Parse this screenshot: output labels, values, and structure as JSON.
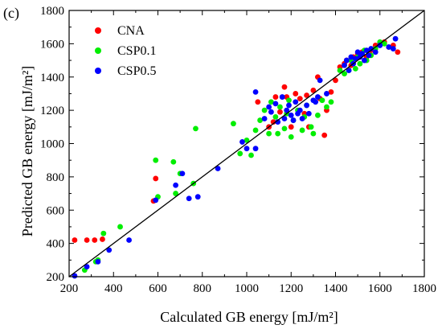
{
  "panel_label": "(c)",
  "chart_data": {
    "type": "scatter",
    "title": "",
    "xlabel": "Calculated GB energy [mJ/m²]",
    "ylabel": "Predicted GB energy [mJ/m²]",
    "xlim": [
      200,
      1800
    ],
    "ylim": [
      200,
      1800
    ],
    "xticks": [
      200,
      400,
      600,
      800,
      1000,
      1200,
      1400,
      1600,
      1800
    ],
    "yticks": [
      200,
      400,
      600,
      800,
      1000,
      1200,
      1400,
      1600,
      1800
    ],
    "legend_placement": "top-left",
    "reference_line": [
      [
        200,
        200
      ],
      [
        1800,
        1800
      ]
    ],
    "series": [
      {
        "name": "CNA",
        "color": "#ff0000",
        "points": [
          [
            225,
            420
          ],
          [
            280,
            420
          ],
          [
            315,
            420
          ],
          [
            350,
            425
          ],
          [
            590,
            790
          ],
          [
            580,
            655
          ],
          [
            1050,
            1250
          ],
          [
            1100,
            1100
          ],
          [
            1120,
            1130
          ],
          [
            1130,
            1280
          ],
          [
            1150,
            1190
          ],
          [
            1170,
            1340
          ],
          [
            1180,
            1280
          ],
          [
            1200,
            1100
          ],
          [
            1220,
            1300
          ],
          [
            1240,
            1270
          ],
          [
            1260,
            1180
          ],
          [
            1270,
            1290
          ],
          [
            1280,
            1100
          ],
          [
            1300,
            1320
          ],
          [
            1320,
            1400
          ],
          [
            1330,
            1270
          ],
          [
            1350,
            1050
          ],
          [
            1360,
            1200
          ],
          [
            1380,
            1310
          ],
          [
            1400,
            1380
          ],
          [
            1420,
            1460
          ],
          [
            1440,
            1480
          ],
          [
            1450,
            1500
          ],
          [
            1470,
            1470
          ],
          [
            1480,
            1520
          ],
          [
            1500,
            1540
          ],
          [
            1520,
            1550
          ],
          [
            1540,
            1520
          ],
          [
            1560,
            1560
          ],
          [
            1580,
            1590
          ],
          [
            1600,
            1600
          ],
          [
            1620,
            1610
          ],
          [
            1640,
            1580
          ],
          [
            1660,
            1590
          ],
          [
            1680,
            1550
          ]
        ]
      },
      {
        "name": "CSP0.1",
        "color": "#00ee00",
        "points": [
          [
            270,
            240
          ],
          [
            320,
            290
          ],
          [
            330,
            300
          ],
          [
            355,
            460
          ],
          [
            430,
            500
          ],
          [
            590,
            900
          ],
          [
            600,
            680
          ],
          [
            670,
            890
          ],
          [
            680,
            700
          ],
          [
            700,
            820
          ],
          [
            760,
            760
          ],
          [
            770,
            1090
          ],
          [
            940,
            1120
          ],
          [
            970,
            940
          ],
          [
            1000,
            1020
          ],
          [
            1020,
            930
          ],
          [
            1040,
            1080
          ],
          [
            1060,
            1140
          ],
          [
            1080,
            1200
          ],
          [
            1100,
            1060
          ],
          [
            1110,
            1250
          ],
          [
            1130,
            1160
          ],
          [
            1140,
            1060
          ],
          [
            1150,
            1220
          ],
          [
            1170,
            1090
          ],
          [
            1180,
            1180
          ],
          [
            1190,
            1260
          ],
          [
            1200,
            1040
          ],
          [
            1210,
            1140
          ],
          [
            1230,
            1200
          ],
          [
            1250,
            1080
          ],
          [
            1260,
            1160
          ],
          [
            1270,
            1230
          ],
          [
            1290,
            1100
          ],
          [
            1300,
            1060
          ],
          [
            1320,
            1170
          ],
          [
            1340,
            1260
          ],
          [
            1360,
            1220
          ],
          [
            1380,
            1250
          ],
          [
            1420,
            1440
          ],
          [
            1440,
            1420
          ],
          [
            1460,
            1440
          ],
          [
            1470,
            1500
          ],
          [
            1490,
            1450
          ],
          [
            1500,
            1520
          ],
          [
            1510,
            1480
          ],
          [
            1530,
            1560
          ],
          [
            1540,
            1500
          ],
          [
            1560,
            1530
          ],
          [
            1580,
            1570
          ],
          [
            1600,
            1610
          ],
          [
            1620,
            1600
          ]
        ]
      },
      {
        "name": "CSP0.5",
        "color": "#0000ff",
        "points": [
          [
            225,
            205
          ],
          [
            280,
            260
          ],
          [
            330,
            290
          ],
          [
            380,
            360
          ],
          [
            470,
            420
          ],
          [
            590,
            660
          ],
          [
            680,
            750
          ],
          [
            710,
            820
          ],
          [
            740,
            670
          ],
          [
            780,
            680
          ],
          [
            870,
            850
          ],
          [
            980,
            1010
          ],
          [
            1000,
            970
          ],
          [
            1040,
            970
          ],
          [
            1040,
            1310
          ],
          [
            1080,
            1150
          ],
          [
            1100,
            1220
          ],
          [
            1110,
            1190
          ],
          [
            1130,
            1240
          ],
          [
            1140,
            1130
          ],
          [
            1160,
            1280
          ],
          [
            1170,
            1150
          ],
          [
            1180,
            1200
          ],
          [
            1190,
            1230
          ],
          [
            1200,
            1170
          ],
          [
            1210,
            1140
          ],
          [
            1220,
            1250
          ],
          [
            1230,
            1180
          ],
          [
            1240,
            1200
          ],
          [
            1250,
            1150
          ],
          [
            1270,
            1230
          ],
          [
            1280,
            1180
          ],
          [
            1300,
            1260
          ],
          [
            1310,
            1250
          ],
          [
            1320,
            1280
          ],
          [
            1330,
            1380
          ],
          [
            1360,
            1300
          ],
          [
            1440,
            1470
          ],
          [
            1450,
            1500
          ],
          [
            1460,
            1440
          ],
          [
            1470,
            1520
          ],
          [
            1480,
            1480
          ],
          [
            1490,
            1510
          ],
          [
            1500,
            1550
          ],
          [
            1510,
            1520
          ],
          [
            1520,
            1540
          ],
          [
            1530,
            1500
          ],
          [
            1540,
            1560
          ],
          [
            1550,
            1530
          ],
          [
            1560,
            1570
          ],
          [
            1580,
            1550
          ],
          [
            1600,
            1590
          ],
          [
            1640,
            1580
          ],
          [
            1660,
            1570
          ],
          [
            1670,
            1630
          ]
        ]
      }
    ]
  }
}
